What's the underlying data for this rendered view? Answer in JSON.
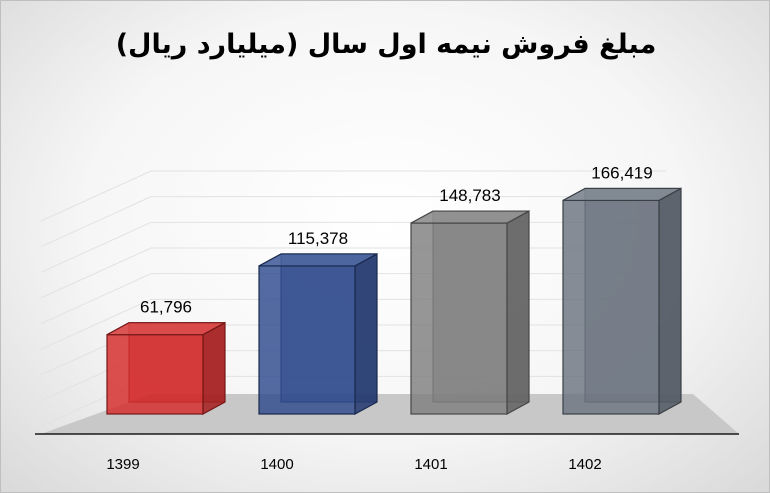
{
  "chart_data": {
    "type": "bar",
    "title": "مبلغ فروش نیمه اول سال (میلیارد ریال)",
    "categories": [
      "1399",
      "1400",
      "1401",
      "1402"
    ],
    "values": [
      61796,
      115378,
      148783,
      166419
    ],
    "value_labels": [
      "61,796",
      "115,378",
      "148,783",
      "166,419"
    ],
    "colors": [
      "#d42a2a",
      "#2e4a8e",
      "#7f7f7f",
      "#6b7480"
    ],
    "ylim": [
      0,
      180000
    ],
    "grid": true,
    "legend": "none",
    "style": "3d-column"
  }
}
